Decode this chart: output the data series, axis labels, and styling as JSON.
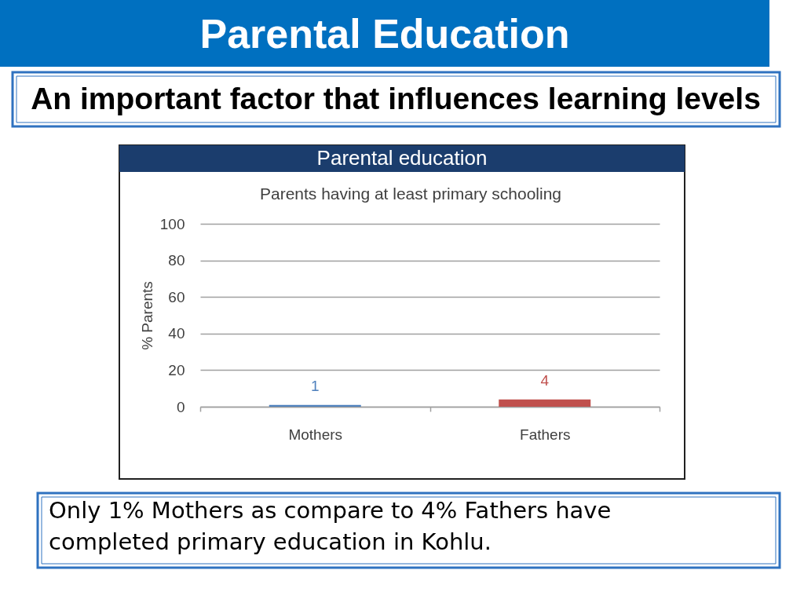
{
  "chart_data": {
    "type": "bar",
    "title": "Parental Education",
    "subtitle": "An important factor that influences learning levels",
    "ylabel": "% Parents",
    "categories": [
      "Mothers",
      "Fathers"
    ],
    "values": [
      1,
      4
    ],
    "colors": [
      "#4f81bd",
      "#c0504d"
    ],
    "ylim": [
      0,
      100
    ],
    "yticks": [
      0,
      20,
      40,
      60,
      80,
      100
    ],
    "grid": "y",
    "data_labels": true,
    "annotations": [
      "Parental education",
      "Parents having at least primary schooling",
      "Only 1% Mothers as compare to 4% Fathers have completed primary education in Kohlu."
    ]
  }
}
